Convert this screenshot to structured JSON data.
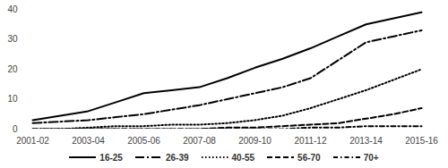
{
  "chart_data": {
    "type": "line",
    "categories": [
      "2001-02",
      null,
      "2003-04",
      null,
      "2005-06",
      null,
      "2007-08",
      null,
      "2009-10",
      null,
      "2011-12",
      null,
      "2013-14",
      null,
      "2015-16"
    ],
    "series": [
      {
        "name": "16-25",
        "color": "#000000",
        "line_style": "solid",
        "values": [
          3,
          4.5,
          6,
          9,
          12,
          13,
          14,
          17,
          20.5,
          23.5,
          27,
          31,
          35,
          37,
          39
        ]
      },
      {
        "name": "26-39",
        "color": "#000000",
        "line_style": "longdashdot",
        "values": [
          2,
          2.5,
          3,
          4,
          5,
          6.5,
          8,
          10,
          12,
          14,
          17,
          23,
          29,
          31,
          33
        ]
      },
      {
        "name": "40-55",
        "color": "#000000",
        "line_style": "dotted",
        "values": [
          0,
          0,
          0.5,
          1,
          1,
          1.5,
          1.5,
          2,
          3,
          4.5,
          7,
          10,
          13,
          16.5,
          20
        ]
      },
      {
        "name": "56-70",
        "color": "#000000",
        "line_style": "dashed",
        "values": [
          0,
          0,
          0,
          0,
          0,
          0,
          0,
          0.5,
          0.5,
          1,
          1.5,
          2,
          3.5,
          5,
          7
        ]
      },
      {
        "name": "70+",
        "color": "#000000",
        "line_style": "dashdot",
        "values": [
          0,
          0,
          0,
          0,
          0,
          0,
          0,
          0,
          0,
          0,
          0.5,
          0.5,
          1,
          1,
          1
        ]
      }
    ],
    "ylim": [
      0,
      40
    ],
    "yticks": [
      0,
      10,
      20,
      30,
      40
    ],
    "grid": false,
    "legend": "bottom"
  }
}
